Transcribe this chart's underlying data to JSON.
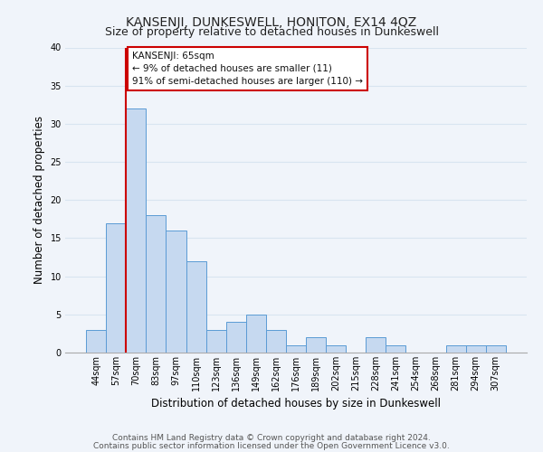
{
  "title": "KANSENJI, DUNKESWELL, HONITON, EX14 4QZ",
  "subtitle": "Size of property relative to detached houses in Dunkeswell",
  "xlabel": "Distribution of detached houses by size in Dunkeswell",
  "ylabel": "Number of detached properties",
  "bar_labels": [
    "44sqm",
    "57sqm",
    "70sqm",
    "83sqm",
    "97sqm",
    "110sqm",
    "123sqm",
    "136sqm",
    "149sqm",
    "162sqm",
    "176sqm",
    "189sqm",
    "202sqm",
    "215sqm",
    "228sqm",
    "241sqm",
    "254sqm",
    "268sqm",
    "281sqm",
    "294sqm",
    "307sqm"
  ],
  "bar_values": [
    3,
    17,
    32,
    18,
    16,
    12,
    3,
    4,
    5,
    3,
    1,
    2,
    1,
    0,
    2,
    1,
    0,
    0,
    1,
    1,
    1
  ],
  "bar_color": "#c6d9f0",
  "bar_edge_color": "#5b9bd5",
  "vline_x_index": 2,
  "vline_color": "#cc0000",
  "annotation_text": "KANSENJI: 65sqm\n← 9% of detached houses are smaller (11)\n91% of semi-detached houses are larger (110) →",
  "annotation_box_color": "#ffffff",
  "annotation_box_edge": "#cc0000",
  "ylim": [
    0,
    40
  ],
  "yticks": [
    0,
    5,
    10,
    15,
    20,
    25,
    30,
    35,
    40
  ],
  "footer_line1": "Contains HM Land Registry data © Crown copyright and database right 2024.",
  "footer_line2": "Contains public sector information licensed under the Open Government Licence v3.0.",
  "title_fontsize": 10,
  "axis_label_fontsize": 8.5,
  "tick_fontsize": 7,
  "annotation_fontsize": 7.5,
  "footer_fontsize": 6.5,
  "grid_color": "#d8e4f0",
  "bg_color": "#f0f4fa"
}
